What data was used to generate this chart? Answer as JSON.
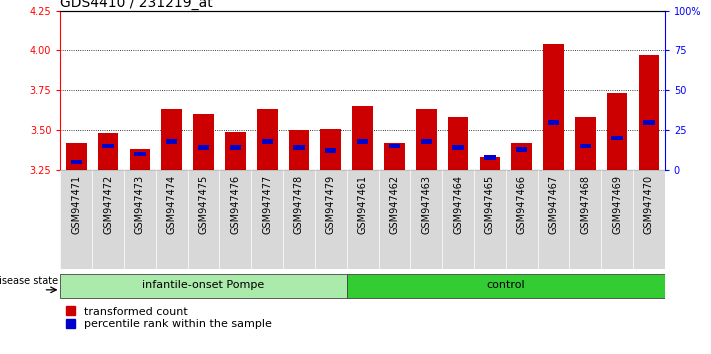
{
  "title": "GDS4410 / 231219_at",
  "samples": [
    "GSM947471",
    "GSM947472",
    "GSM947473",
    "GSM947474",
    "GSM947475",
    "GSM947476",
    "GSM947477",
    "GSM947478",
    "GSM947479",
    "GSM947461",
    "GSM947462",
    "GSM947463",
    "GSM947464",
    "GSM947465",
    "GSM947466",
    "GSM947467",
    "GSM947468",
    "GSM947469",
    "GSM947470"
  ],
  "transformed_counts": [
    3.42,
    3.48,
    3.38,
    3.63,
    3.6,
    3.49,
    3.63,
    3.5,
    3.51,
    3.65,
    3.42,
    3.63,
    3.58,
    3.33,
    3.42,
    4.04,
    3.58,
    3.73,
    3.97
  ],
  "percentile_ranks": [
    5,
    15,
    10,
    18,
    14,
    14,
    18,
    14,
    12,
    18,
    15,
    18,
    14,
    8,
    13,
    30,
    15,
    20,
    30
  ],
  "groups": [
    "infantile-onset Pompe",
    "infantile-onset Pompe",
    "infantile-onset Pompe",
    "infantile-onset Pompe",
    "infantile-onset Pompe",
    "infantile-onset Pompe",
    "infantile-onset Pompe",
    "infantile-onset Pompe",
    "infantile-onset Pompe",
    "control",
    "control",
    "control",
    "control",
    "control",
    "control",
    "control",
    "control",
    "control",
    "control"
  ],
  "group_colors": {
    "infantile-onset Pompe": "#aaeaaa",
    "control": "#33cc33"
  },
  "bar_color": "#cc0000",
  "blue_color": "#0000cc",
  "y_min": 3.25,
  "y_max": 4.25,
  "y_ticks": [
    3.25,
    3.5,
    3.75,
    4.0,
    4.25
  ],
  "right_y_ticks": [
    0,
    25,
    50,
    75,
    100
  ],
  "right_y_labels": [
    "0",
    "25",
    "50",
    "75",
    "100%"
  ],
  "tick_fontsize": 7,
  "title_fontsize": 10,
  "legend_fontsize": 8,
  "ds_fontsize": 8
}
